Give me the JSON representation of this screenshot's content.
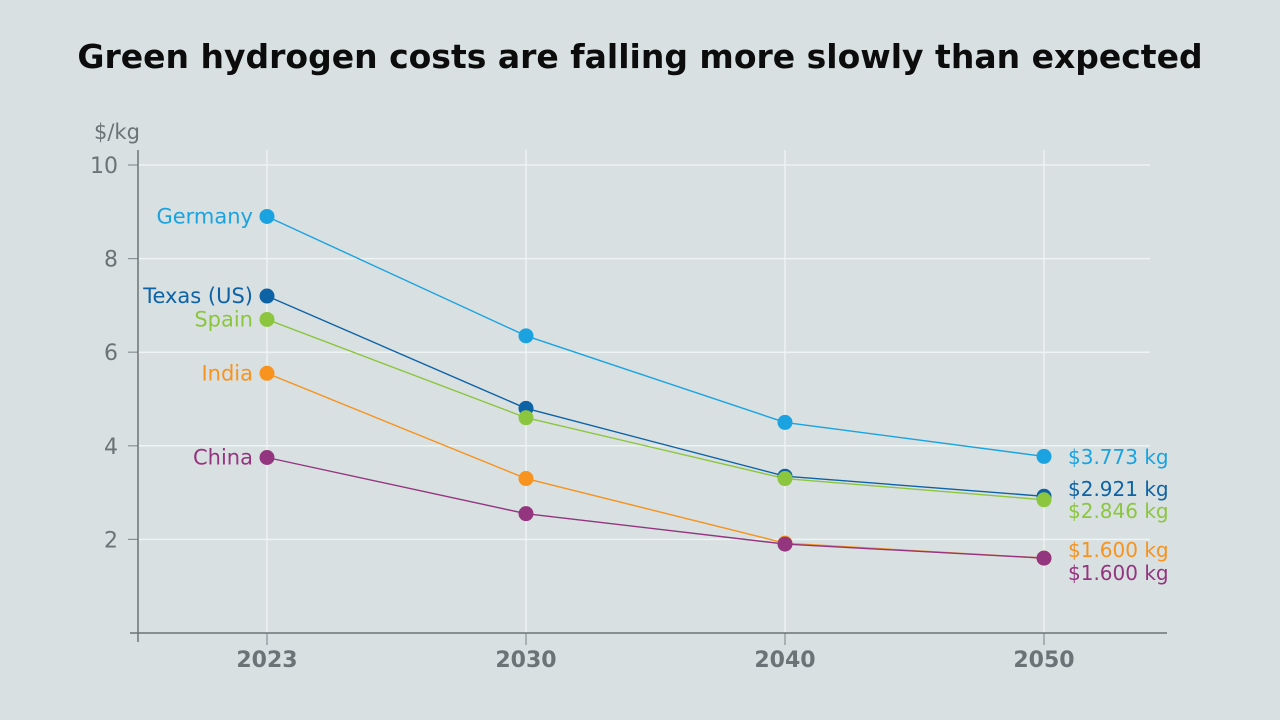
{
  "chart_data": {
    "type": "line",
    "title": "Green hydrogen costs are falling more slowly than expected",
    "xlabel": "",
    "ylabel": "$/kg",
    "x": [
      2023,
      2030,
      2040,
      2050
    ],
    "x_tick_labels": [
      "2023",
      "2030",
      "2040",
      "2050"
    ],
    "ylim": [
      0,
      10
    ],
    "y_ticks": [
      2,
      4,
      6,
      8,
      10
    ],
    "y_tick_labels": [
      "2",
      "4",
      "6",
      "8",
      "10"
    ],
    "grid": true,
    "legend": "inline-left",
    "series": [
      {
        "name": "Germany",
        "color": "#1aa3e0",
        "values": [
          8.9,
          6.35,
          4.5,
          3.773
        ],
        "end_label": "$3.773 kg"
      },
      {
        "name": "Texas (US)",
        "color": "#0e62a6",
        "values": [
          7.2,
          4.8,
          3.35,
          2.921
        ],
        "end_label": "$2.921 kg"
      },
      {
        "name": "Spain",
        "color": "#8cc63f",
        "values": [
          6.7,
          4.6,
          3.3,
          2.846
        ],
        "end_label": "$2.846 kg"
      },
      {
        "name": "India",
        "color": "#f7931e",
        "values": [
          5.55,
          3.3,
          1.92,
          1.6
        ],
        "end_label": "$1.600 kg"
      },
      {
        "name": "China",
        "color": "#93357f",
        "values": [
          3.75,
          2.55,
          1.9,
          1.6
        ],
        "end_label": "$1.600 kg"
      }
    ]
  }
}
